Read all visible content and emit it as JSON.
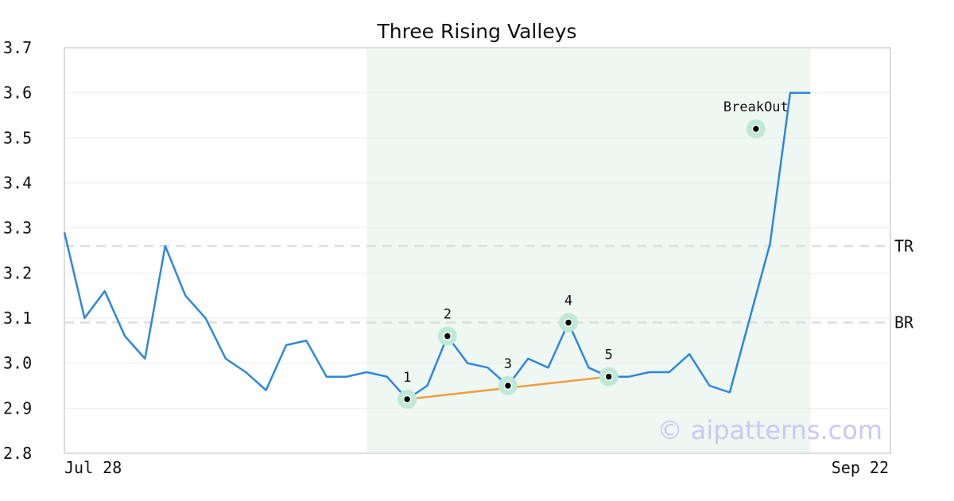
{
  "chart_data": {
    "type": "line",
    "title": "Three Rising Valleys",
    "xlabel": "",
    "ylabel": "",
    "x_tick_labels": [
      "Jul 28",
      "Sep 22"
    ],
    "ylim": [
      2.8,
      3.7
    ],
    "y_ticks": [
      "2.8",
      "2.9",
      "3.0",
      "3.1",
      "3.2",
      "3.3",
      "3.4",
      "3.5",
      "3.6",
      "3.7"
    ],
    "grid": true,
    "series": [
      {
        "color": "#2e86de",
        "values": [
          3.29,
          3.1,
          3.16,
          3.06,
          3.01,
          3.26,
          3.15,
          3.1,
          3.01,
          2.98,
          2.94,
          3.04,
          3.05,
          2.97,
          2.97,
          2.98,
          2.97,
          2.92,
          2.95,
          3.06,
          3.0,
          2.99,
          2.95,
          3.01,
          2.99,
          3.09,
          2.99,
          2.97,
          2.97,
          2.98,
          2.98,
          3.02,
          2.95,
          2.935,
          3.1,
          3.265,
          3.6,
          3.6
        ]
      }
    ],
    "highlight_range": {
      "from_index": 15,
      "to_index": 37,
      "color": "#eef7f2"
    },
    "reference_lines": [
      {
        "label": "TR",
        "value": 3.26
      },
      {
        "label": "BR",
        "value": 3.09
      }
    ],
    "markers": [
      {
        "label": "1",
        "index": 17,
        "value": 2.92
      },
      {
        "label": "2",
        "index": 19,
        "value": 3.06
      },
      {
        "label": "3",
        "index": 22,
        "value": 2.95
      },
      {
        "label": "4",
        "index": 25,
        "value": 3.09
      },
      {
        "label": "5",
        "index": 27,
        "value": 2.97
      },
      {
        "label": "BreakOut",
        "index": 34.3,
        "value": 3.52
      }
    ],
    "trendline": {
      "from_index": 17,
      "from_value": 2.92,
      "to_index": 27,
      "to_value": 2.97,
      "color": "#f39c3e"
    },
    "colors": {
      "marker_halo": "#bfe9d6",
      "reference_line": "#dddddd"
    }
  },
  "watermark": "© aipatterns.com"
}
